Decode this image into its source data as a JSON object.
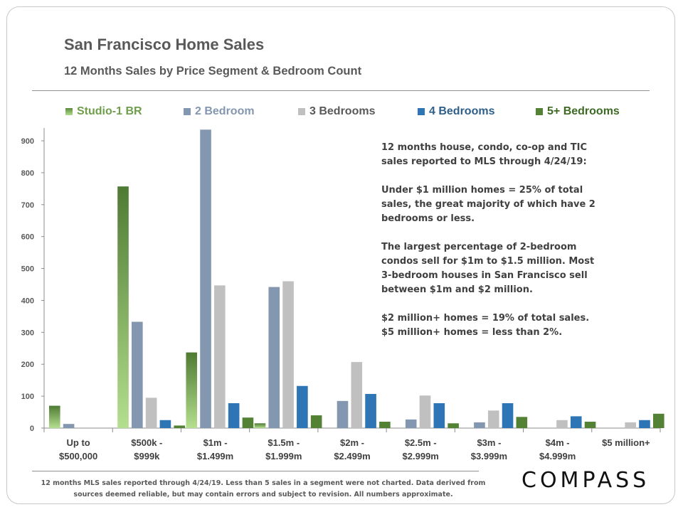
{
  "title": "San Francisco Home Sales",
  "subtitle": "12 Months Sales by Price Segment & Bedroom Count",
  "annotation": [
    "12 months house, condo, co-op and TIC sales reported to MLS through 4/24/19:",
    "Under $1 million homes = 25% of total sales, the great majority of which have 2 bedrooms or less.",
    "The largest percentage of 2-bedroom condos sell for $1m to $1.5 million. Most 3-bedroom houses in San Francisco sell between $1m and $2 million.",
    "$2 million+ homes = 19% of total sales. $5 million+ homes = less than 2%."
  ],
  "footnote": "12 months MLS sales reported through 4/24/19. Less than 5 sales in a segment were not charted. Data derived from sources deemed reliable, but may contain errors and subject to revision. All numbers approximate.",
  "logo": "COMPASS",
  "chart_data": {
    "type": "bar",
    "title": "San Francisco Home Sales",
    "subtitle": "12 Months Sales by Price Segment & Bedroom Count",
    "categories": [
      [
        "Up to",
        "$500,000"
      ],
      [
        "$500k -",
        "$999k"
      ],
      [
        "$1m -",
        "$1.499m"
      ],
      [
        "$1.5m -",
        "$1.999m"
      ],
      [
        "$2m -",
        "$2.499m"
      ],
      [
        "$2.5m -",
        "$2.999m"
      ],
      [
        "$3m -",
        "$3.999m"
      ],
      [
        "$4m -",
        "$4.999m"
      ],
      [
        "$5 million+"
      ]
    ],
    "ylim": [
      0,
      950
    ],
    "yticks": [
      0,
      100,
      200,
      300,
      400,
      500,
      600,
      700,
      800,
      900
    ],
    "grid": false,
    "legend_position": "top",
    "series": [
      {
        "name": "Studio-1 BR",
        "color": "#6f9e4a",
        "values": [
          70,
          757,
          237,
          15,
          null,
          null,
          null,
          null,
          null
        ]
      },
      {
        "name": "2 Bedroom",
        "color": "#8497b0",
        "values": [
          13,
          333,
          935,
          442,
          85,
          27,
          18,
          null,
          null
        ]
      },
      {
        "name": "3 Bedrooms",
        "color": "#c0c0c0",
        "values": [
          null,
          95,
          447,
          460,
          207,
          102,
          55,
          25,
          18
        ]
      },
      {
        "name": "4 Bedrooms",
        "color": "#2e75b6",
        "values": [
          null,
          25,
          78,
          132,
          107,
          78,
          78,
          37,
          25
        ]
      },
      {
        "name": "5+ Bedrooms",
        "color": "#548235",
        "values": [
          null,
          8,
          33,
          40,
          20,
          15,
          35,
          20,
          45
        ]
      }
    ]
  }
}
